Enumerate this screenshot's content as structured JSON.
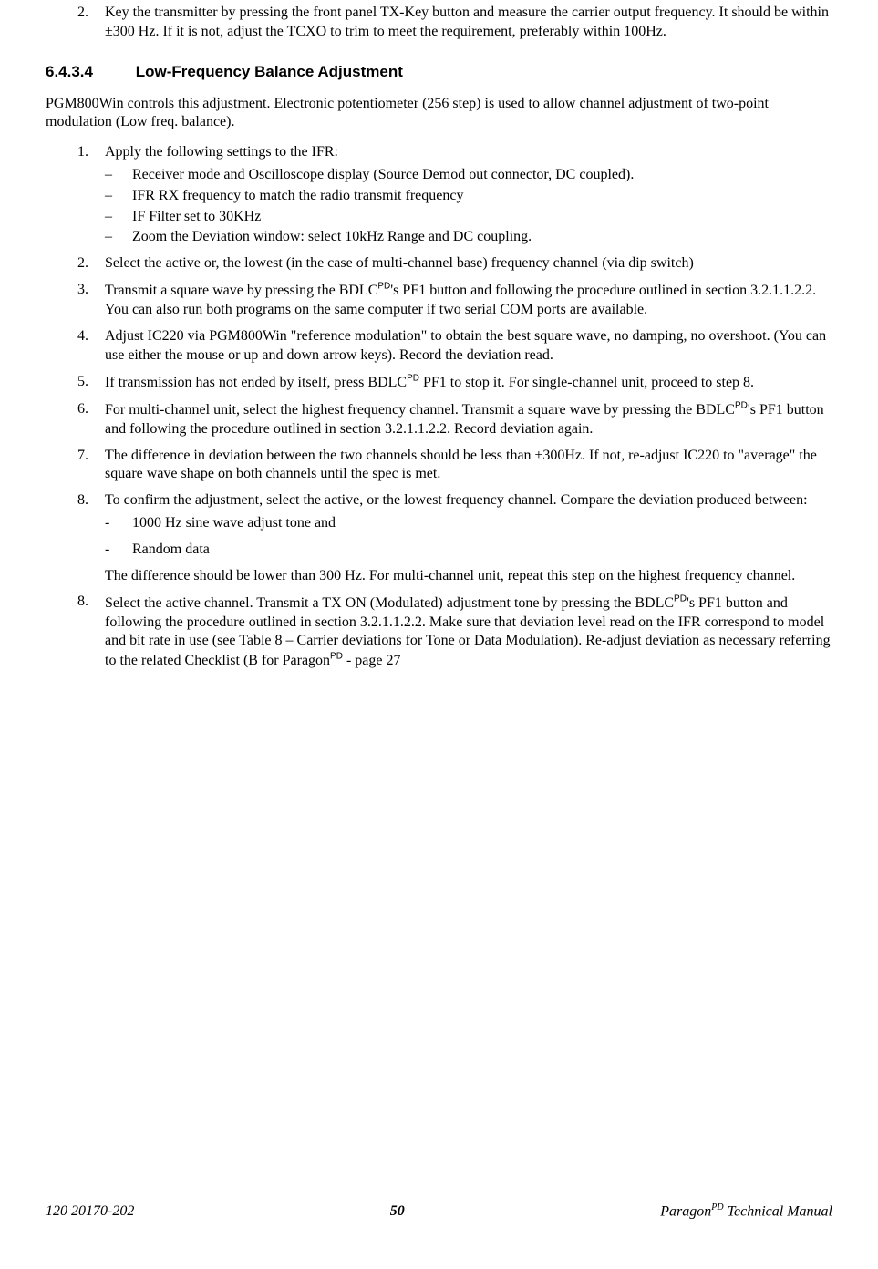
{
  "first_item": {
    "num": "2.",
    "text_a": "Key the transmitter by pressing the front panel TX-Key button and measure the carrier output frequency. It should be within ±300 Hz. If it is not, adjust the TCXO to trim to meet the requirement, preferably within 100Hz."
  },
  "section": {
    "number": "6.4.3.4",
    "title": "Low-Frequency Balance Adjustment"
  },
  "intro": "PGM800Win controls this adjustment. Electronic potentiometer (256 step) is used to allow channel adjustment of two-point modulation (Low freq. balance).",
  "steps": [
    {
      "num": "1.",
      "text": "Apply the following settings to the IFR:",
      "sub": [
        "Receiver mode and Oscilloscope display (Source Demod out connector, DC coupled).",
        "IFR RX frequency to match the radio transmit frequency",
        "IF Filter set to 30KHz",
        "Zoom the Deviation window: select 10kHz Range and DC coupling."
      ]
    },
    {
      "num": "2.",
      "text": "Select the active or, the lowest (in the case of multi-channel base) frequency channel (via dip switch)"
    },
    {
      "num": "3.",
      "pre": "Transmit a square wave by pressing the BDLC",
      "sup": "PD",
      "post": "'s PF1 button and following the procedure outlined in section 3.2.1.1.2.2. You can also run both programs on the same computer if two serial COM ports are available."
    },
    {
      "num": "4.",
      "text": "Adjust IC220 via PGM800Win \"reference modulation\" to obtain the best square wave, no damping, no overshoot. (You can use either the mouse or up and down arrow keys). Record the deviation read."
    },
    {
      "num": "5.",
      "pre": "If transmission has not ended by itself, press BDLC",
      "sup": "PD",
      "post": " PF1 to stop it. For single-channel unit, proceed to step 8."
    },
    {
      "num": "6.",
      "pre": "For multi-channel unit, select the highest frequency channel. Transmit a square wave by pressing the BDLC",
      "sup": "PD",
      "post": "'s PF1 button and following the procedure outlined in section 3.2.1.1.2.2. Record deviation again."
    },
    {
      "num": "7.",
      "text": "The difference in deviation between the two channels should be less than ±300Hz. If not, re-adjust IC220 to \"average\" the square wave shape on both channels until the spec is met."
    },
    {
      "num": "8.",
      "text": "To confirm the adjustment, select the active, or the lowest frequency channel. Compare the deviation produced between:",
      "sub2": [
        "1000 Hz sine wave adjust tone and",
        "Random data"
      ],
      "follow": "The difference should be lower than 300 Hz. For multi-channel unit, repeat this step on the highest frequency channel."
    },
    {
      "num": "8.",
      "pre": "Select the active channel. Transmit a TX ON (Modulated) adjustment tone by pressing the BDLC",
      "sup": "PD",
      "post": "'s PF1 button and following the procedure outlined in section 3.2.1.1.2.2. Make sure that deviation level read on the IFR correspond to model and bit rate in use (see Table 8 – Carrier deviations for Tone or Data Modulation). Re-adjust deviation as necessary referring to the related Checklist (B for Paragon",
      "sup2": "PD",
      "post2": " - page 27"
    }
  ],
  "footer": {
    "left": "120 20170-202",
    "page": "50",
    "right_pre": "Paragon",
    "right_sup": "PD",
    "right_post": " Technical Manual"
  }
}
